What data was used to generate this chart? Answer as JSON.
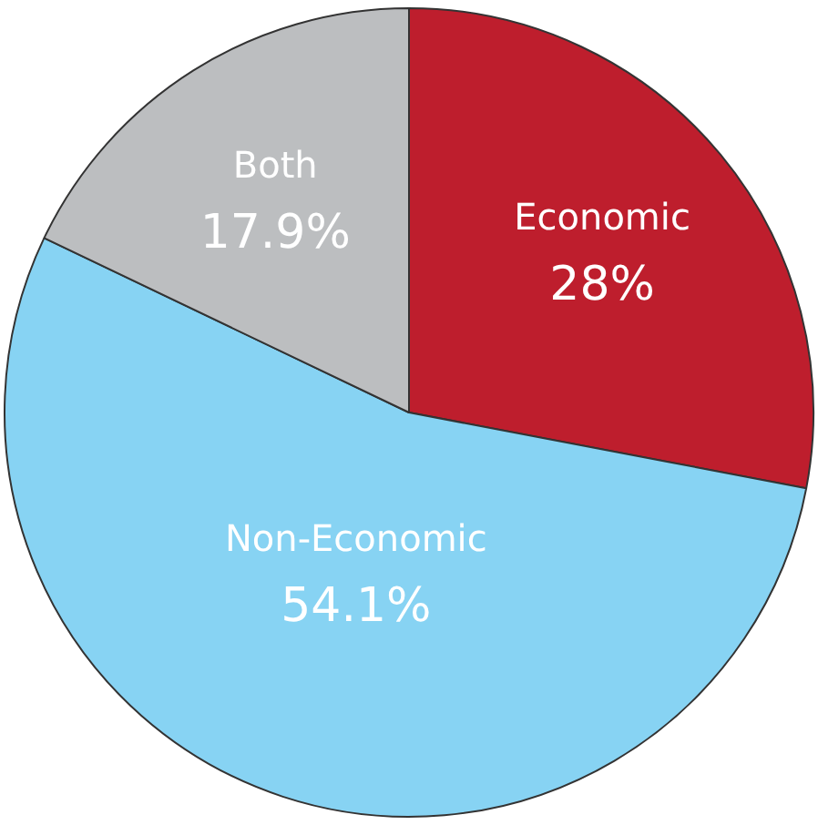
{
  "chart_data": {
    "type": "pie",
    "categories": [
      "Economic",
      "Non-Economic",
      "Both"
    ],
    "values": [
      28,
      54.1,
      17.9
    ],
    "colors": [
      "#be1e2d",
      "#87d3f3",
      "#bcbec0"
    ],
    "value_labels": [
      "28%",
      "54.1%",
      "17.9%"
    ],
    "legend": false
  }
}
